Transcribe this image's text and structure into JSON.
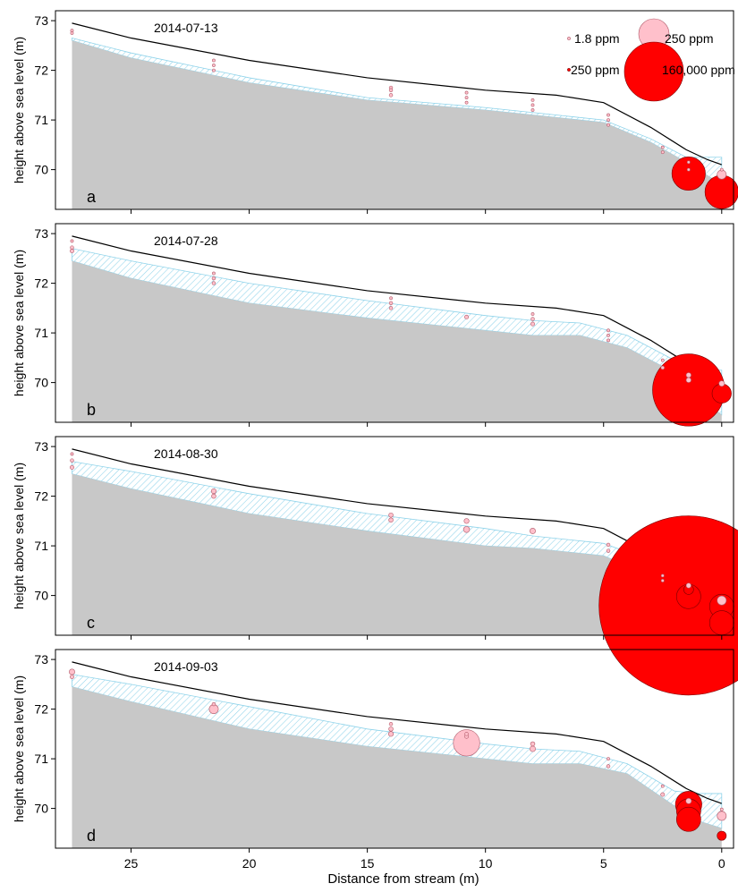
{
  "chart_data": {
    "type": "scatter",
    "xlabel": "Distance from stream (m)",
    "ylabel": "height above sea level (m)",
    "xlim": [
      28.2,
      -0.5
    ],
    "ylim": [
      69.2,
      73.2
    ],
    "xticks": [
      25,
      20,
      15,
      10,
      5,
      0
    ],
    "yticks": [
      70,
      71,
      72,
      73
    ],
    "xtick_labels": [
      "25",
      "20",
      "15",
      "10",
      "5",
      "0"
    ],
    "ytick_labels": [
      "70",
      "71",
      "72",
      "73"
    ],
    "legend": {
      "placement": "top-right",
      "entries": [
        {
          "label": "1.8 ppm",
          "color": "#FFC0CB",
          "ppm": 1.8
        },
        {
          "label": "250 ppm",
          "color": "#FFC0CB",
          "ppm": 250
        },
        {
          "label": "250 ppm",
          "color": "#FF0000",
          "ppm": 250
        },
        {
          "label": "160,000 ppm",
          "color": "#FF0000",
          "ppm": 160000
        }
      ]
    },
    "series_colors": {
      "low": "#FFC0CB",
      "high": "#FF0000",
      "ground": "#C8C8C8",
      "hatch": "#8FD3EA",
      "surface": "#000000"
    },
    "surface_profile": {
      "x": [
        27.5,
        25,
        20,
        15,
        10,
        7,
        5,
        3,
        1.5,
        0.6,
        0
      ],
      "y": [
        72.95,
        72.65,
        72.2,
        71.85,
        71.6,
        71.5,
        71.35,
        70.85,
        70.4,
        70.2,
        70.1
      ]
    },
    "panels": [
      {
        "label": "a",
        "date": "2014-07-13",
        "ground": {
          "x": [
            27.5,
            25,
            20,
            15,
            10,
            8,
            5,
            3,
            1.5,
            0.5,
            0
          ],
          "y": [
            72.6,
            72.25,
            71.75,
            71.4,
            71.2,
            71.1,
            70.95,
            70.55,
            70.15,
            69.85,
            69.7
          ]
        },
        "water": {
          "x": [
            27.5,
            25,
            20,
            15,
            10,
            8,
            5,
            3,
            1.5,
            0.5,
            0
          ],
          "y": [
            72.65,
            72.35,
            71.85,
            71.45,
            71.25,
            71.15,
            71.0,
            70.62,
            70.25,
            70.25,
            70.25
          ]
        },
        "points": [
          {
            "x": 27.5,
            "y": 72.8,
            "ppm": 1.8,
            "level": "low"
          },
          {
            "x": 27.5,
            "y": 72.75,
            "ppm": 1.8,
            "level": "low"
          },
          {
            "x": 21.5,
            "y": 72.2,
            "ppm": 1.8,
            "level": "low"
          },
          {
            "x": 21.5,
            "y": 72.1,
            "ppm": 1.8,
            "level": "low"
          },
          {
            "x": 21.5,
            "y": 72.0,
            "ppm": 1.8,
            "level": "low"
          },
          {
            "x": 14,
            "y": 71.65,
            "ppm": 8,
            "level": "low"
          },
          {
            "x": 14,
            "y": 71.6,
            "ppm": 8,
            "level": "low"
          },
          {
            "x": 14,
            "y": 71.5,
            "ppm": 8,
            "level": "low"
          },
          {
            "x": 10.8,
            "y": 71.55,
            "ppm": 1.8,
            "level": "low"
          },
          {
            "x": 10.8,
            "y": 71.45,
            "ppm": 1.8,
            "level": "low"
          },
          {
            "x": 10.8,
            "y": 71.35,
            "ppm": 1.8,
            "level": "low"
          },
          {
            "x": 8,
            "y": 71.4,
            "ppm": 1.8,
            "level": "low"
          },
          {
            "x": 8,
            "y": 71.3,
            "ppm": 1.8,
            "level": "low"
          },
          {
            "x": 8,
            "y": 71.2,
            "ppm": 1.8,
            "level": "low"
          },
          {
            "x": 4.8,
            "y": 71.1,
            "ppm": 1.8,
            "level": "low"
          },
          {
            "x": 4.8,
            "y": 71.0,
            "ppm": 1.8,
            "level": "low"
          },
          {
            "x": 4.8,
            "y": 70.9,
            "ppm": 1.8,
            "level": "low"
          },
          {
            "x": 2.5,
            "y": 70.45,
            "ppm": 1.8,
            "level": "low"
          },
          {
            "x": 2.5,
            "y": 70.35,
            "ppm": 1.8,
            "level": "low"
          },
          {
            "x": 1.4,
            "y": 70.15,
            "ppm": 1.8,
            "level": "low"
          },
          {
            "x": 1.4,
            "y": 70.0,
            "ppm": 1.8,
            "level": "low"
          },
          {
            "x": 1.4,
            "y": 69.92,
            "ppm": 5000,
            "level": "high"
          },
          {
            "x": 0,
            "y": 69.9,
            "ppm": 250,
            "level": "low"
          },
          {
            "x": 0,
            "y": 69.55,
            "ppm": 5000,
            "level": "high"
          },
          {
            "x": 0,
            "y": 70.0,
            "ppm": 1.8,
            "level": "low"
          }
        ]
      },
      {
        "label": "b",
        "date": "2014-07-28",
        "ground": {
          "x": [
            27.5,
            25,
            20,
            15,
            10,
            8,
            6,
            4,
            2,
            1,
            0
          ],
          "y": [
            72.45,
            72.1,
            71.6,
            71.3,
            71.05,
            70.95,
            70.95,
            70.7,
            70.2,
            69.7,
            69.35
          ]
        },
        "water": {
          "x": [
            27.5,
            25,
            20,
            15,
            10,
            8,
            6,
            4,
            2,
            1,
            0
          ],
          "y": [
            72.7,
            72.45,
            72.0,
            71.65,
            71.35,
            71.25,
            71.2,
            70.95,
            70.45,
            70.25,
            70.25
          ]
        },
        "points": [
          {
            "x": 27.5,
            "y": 72.85,
            "ppm": 1.8,
            "level": "low"
          },
          {
            "x": 27.5,
            "y": 72.72,
            "ppm": 8,
            "level": "low"
          },
          {
            "x": 27.5,
            "y": 72.65,
            "ppm": 15,
            "level": "low"
          },
          {
            "x": 21.5,
            "y": 72.2,
            "ppm": 1.8,
            "level": "low"
          },
          {
            "x": 21.5,
            "y": 72.1,
            "ppm": 8,
            "level": "low"
          },
          {
            "x": 21.5,
            "y": 72.0,
            "ppm": 8,
            "level": "low"
          },
          {
            "x": 14,
            "y": 71.7,
            "ppm": 1.8,
            "level": "low"
          },
          {
            "x": 14,
            "y": 71.6,
            "ppm": 8,
            "level": "low"
          },
          {
            "x": 14,
            "y": 71.5,
            "ppm": 8,
            "level": "low"
          },
          {
            "x": 10.8,
            "y": 71.32,
            "ppm": 15,
            "level": "low"
          },
          {
            "x": 8,
            "y": 71.38,
            "ppm": 1.8,
            "level": "low"
          },
          {
            "x": 8,
            "y": 71.28,
            "ppm": 8,
            "level": "low"
          },
          {
            "x": 8,
            "y": 71.18,
            "ppm": 15,
            "level": "low"
          },
          {
            "x": 4.8,
            "y": 71.05,
            "ppm": 1.8,
            "level": "low"
          },
          {
            "x": 4.8,
            "y": 70.95,
            "ppm": 1.8,
            "level": "low"
          },
          {
            "x": 4.8,
            "y": 70.85,
            "ppm": 1.8,
            "level": "low"
          },
          {
            "x": 2.5,
            "y": 70.45,
            "ppm": 1.8,
            "level": "low"
          },
          {
            "x": 2.5,
            "y": 70.3,
            "ppm": 8,
            "level": "low"
          },
          {
            "x": 1.4,
            "y": 70.15,
            "ppm": 40,
            "level": "low"
          },
          {
            "x": 1.4,
            "y": 70.05,
            "ppm": 40,
            "level": "low"
          },
          {
            "x": 1.4,
            "y": 69.85,
            "ppm": 25000,
            "level": "high"
          },
          {
            "x": 0,
            "y": 69.98,
            "ppm": 60,
            "level": "low"
          },
          {
            "x": 0,
            "y": 69.78,
            "ppm": 1500,
            "level": "high"
          }
        ]
      },
      {
        "label": "c",
        "date": "2014-08-30",
        "ground": {
          "x": [
            27.5,
            25,
            20,
            15,
            10,
            8,
            5,
            3,
            1.5,
            0.5,
            0
          ],
          "y": [
            72.45,
            72.15,
            71.65,
            71.3,
            71.0,
            70.95,
            70.8,
            70.4,
            69.95,
            69.75,
            69.7
          ]
        },
        "water": {
          "x": [
            27.5,
            25,
            20,
            15,
            10,
            8,
            5,
            3,
            1.5,
            0.5,
            0
          ],
          "y": [
            72.7,
            72.5,
            72.05,
            71.65,
            71.35,
            71.2,
            71.05,
            70.7,
            70.35,
            70.3,
            70.3
          ]
        },
        "points": [
          {
            "x": 27.5,
            "y": 72.85,
            "ppm": 1.8,
            "level": "low"
          },
          {
            "x": 27.5,
            "y": 72.72,
            "ppm": 8,
            "level": "low"
          },
          {
            "x": 27.5,
            "y": 72.58,
            "ppm": 15,
            "level": "low"
          },
          {
            "x": 21.5,
            "y": 72.1,
            "ppm": 40,
            "level": "low"
          },
          {
            "x": 21.5,
            "y": 72.0,
            "ppm": 25,
            "level": "low"
          },
          {
            "x": 14,
            "y": 71.62,
            "ppm": 25,
            "level": "low"
          },
          {
            "x": 14,
            "y": 71.52,
            "ppm": 25,
            "level": "low"
          },
          {
            "x": 10.8,
            "y": 71.5,
            "ppm": 40,
            "level": "low"
          },
          {
            "x": 10.8,
            "y": 71.33,
            "ppm": 80,
            "level": "low"
          },
          {
            "x": 8,
            "y": 71.3,
            "ppm": 60,
            "level": "low"
          },
          {
            "x": 4.8,
            "y": 71.02,
            "ppm": 8,
            "level": "low"
          },
          {
            "x": 4.8,
            "y": 70.9,
            "ppm": 8,
            "level": "low"
          },
          {
            "x": 2.5,
            "y": 70.4,
            "ppm": 1.8,
            "level": "low"
          },
          {
            "x": 2.5,
            "y": 70.3,
            "ppm": 1.8,
            "level": "low"
          },
          {
            "x": 1.4,
            "y": 69.8,
            "ppm": 160000,
            "level": "high"
          },
          {
            "x": 1.4,
            "y": 69.98,
            "ppm": 2500,
            "level": "high"
          },
          {
            "x": 1.4,
            "y": 70.12,
            "ppm": 300,
            "level": "high"
          },
          {
            "x": 1.4,
            "y": 70.2,
            "ppm": 40,
            "level": "low"
          },
          {
            "x": 0,
            "y": 69.9,
            "ppm": 250,
            "level": "low"
          },
          {
            "x": 0,
            "y": 69.78,
            "ppm": 2500,
            "level": "high"
          },
          {
            "x": 0,
            "y": 69.45,
            "ppm": 2500,
            "level": "high"
          }
        ]
      },
      {
        "label": "d",
        "date": "2014-09-03",
        "ground": {
          "x": [
            27.5,
            25,
            20,
            15,
            10,
            8,
            6,
            4,
            2,
            1,
            0
          ],
          "y": [
            72.45,
            72.15,
            71.6,
            71.25,
            71.0,
            70.9,
            70.9,
            70.7,
            70.05,
            69.75,
            69.6
          ]
        },
        "water": {
          "x": [
            27.5,
            25,
            20,
            15,
            10,
            8,
            6,
            4,
            2,
            1,
            0
          ],
          "y": [
            72.7,
            72.5,
            72.05,
            71.6,
            71.3,
            71.2,
            71.15,
            70.9,
            70.35,
            70.3,
            70.3
          ]
        },
        "points": [
          {
            "x": 27.5,
            "y": 72.75,
            "ppm": 60,
            "level": "low"
          },
          {
            "x": 27.5,
            "y": 72.65,
            "ppm": 15,
            "level": "low"
          },
          {
            "x": 21.5,
            "y": 72.1,
            "ppm": 8,
            "level": "low"
          },
          {
            "x": 21.5,
            "y": 72.0,
            "ppm": 250,
            "level": "low"
          },
          {
            "x": 14,
            "y": 71.7,
            "ppm": 8,
            "level": "low"
          },
          {
            "x": 14,
            "y": 71.6,
            "ppm": 25,
            "level": "low"
          },
          {
            "x": 14,
            "y": 71.5,
            "ppm": 40,
            "level": "low"
          },
          {
            "x": 10.8,
            "y": 71.5,
            "ppm": 8,
            "level": "low"
          },
          {
            "x": 10.8,
            "y": 71.45,
            "ppm": 15,
            "level": "low"
          },
          {
            "x": 10.8,
            "y": 71.32,
            "ppm": 3000,
            "level": "low"
          },
          {
            "x": 8,
            "y": 71.3,
            "ppm": 25,
            "level": "low"
          },
          {
            "x": 8,
            "y": 71.2,
            "ppm": 60,
            "level": "low"
          },
          {
            "x": 4.8,
            "y": 71.0,
            "ppm": 1.8,
            "level": "low"
          },
          {
            "x": 4.8,
            "y": 70.85,
            "ppm": 8,
            "level": "low"
          },
          {
            "x": 2.5,
            "y": 70.45,
            "ppm": 1.8,
            "level": "low"
          },
          {
            "x": 2.5,
            "y": 70.28,
            "ppm": 15,
            "level": "low"
          },
          {
            "x": 1.4,
            "y": 70.08,
            "ppm": 3000,
            "level": "high"
          },
          {
            "x": 1.4,
            "y": 69.95,
            "ppm": 2500,
            "level": "high"
          },
          {
            "x": 1.4,
            "y": 69.78,
            "ppm": 2500,
            "level": "high"
          },
          {
            "x": 1.4,
            "y": 70.15,
            "ppm": 60,
            "level": "low"
          },
          {
            "x": 0,
            "y": 69.85,
            "ppm": 250,
            "level": "low"
          },
          {
            "x": 0,
            "y": 69.98,
            "ppm": 1.8,
            "level": "low"
          },
          {
            "x": 0,
            "y": 69.45,
            "ppm": 250,
            "level": "high"
          }
        ]
      }
    ]
  }
}
